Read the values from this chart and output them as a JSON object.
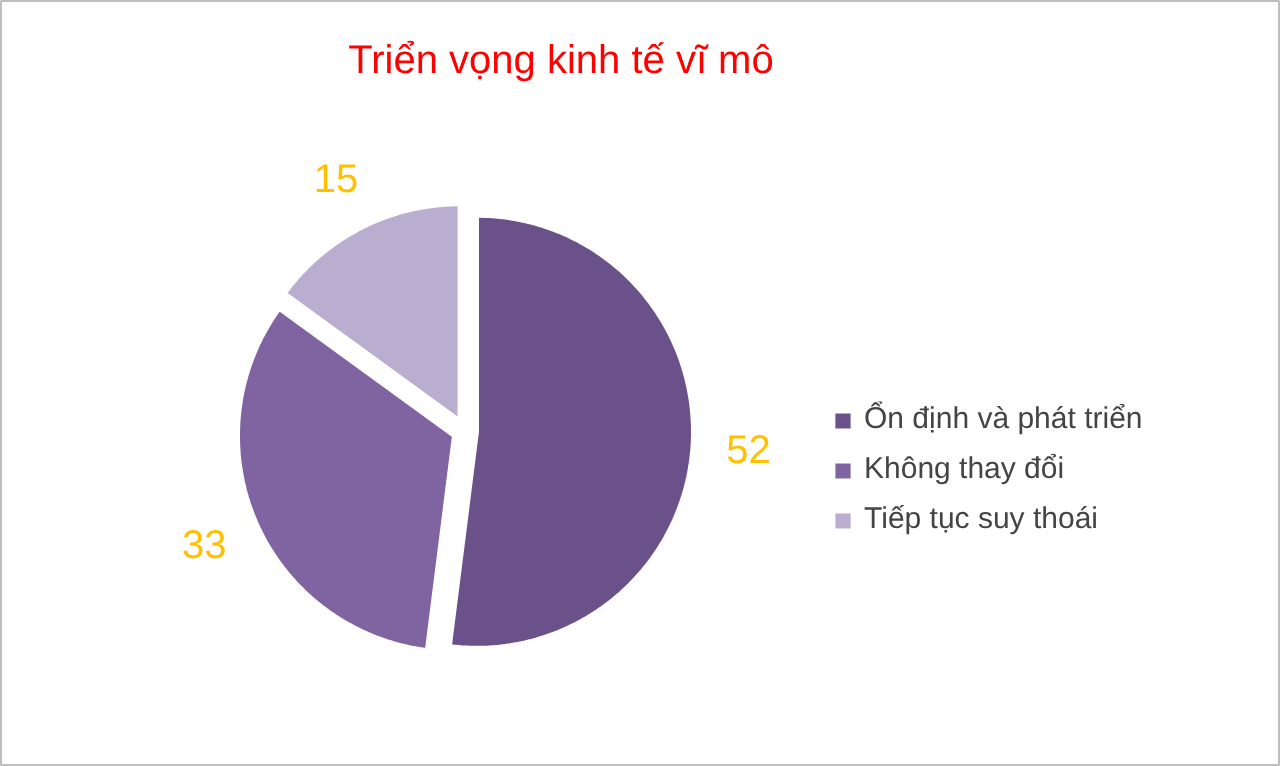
{
  "chart_data": {
    "type": "pie",
    "title": "Triển vọng kinh tế vĩ mô",
    "categories": [
      "Ổn định và phát triển",
      "Không thay đổi",
      "Tiếp tục suy thoái"
    ],
    "values": [
      52,
      33,
      15
    ],
    "colors": [
      "#6a5189",
      "#8064a2",
      "#b9aed0"
    ],
    "data_labels": true,
    "legend": "right"
  }
}
